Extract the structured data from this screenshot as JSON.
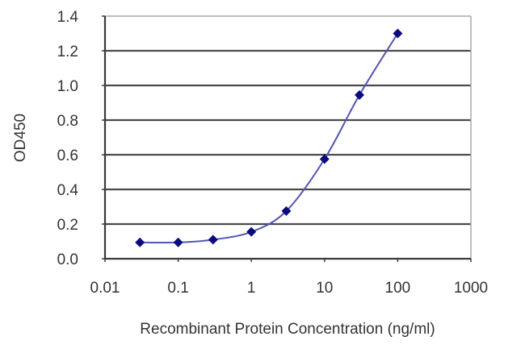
{
  "chart_data": {
    "type": "line",
    "title": "",
    "xlabel": "Recombinant Protein Concentration (ng/ml)",
    "ylabel": "OD450",
    "x_scale": "log",
    "xlim": [
      0.01,
      1000
    ],
    "ylim": [
      0.0,
      1.4
    ],
    "x_ticks": [
      "0.01",
      "0.1",
      "1",
      "10",
      "100",
      "1000"
    ],
    "y_ticks": [
      "0.0",
      "0.2",
      "0.4",
      "0.6",
      "0.8",
      "1.0",
      "1.2",
      "1.4"
    ],
    "grid": "horizontal",
    "legend": null,
    "series": [
      {
        "name": "OD450",
        "marker": "diamond",
        "color": "#0b0b7e",
        "line_color": "#5454b4",
        "x": [
          0.03,
          0.1,
          0.3,
          1,
          3,
          10,
          30,
          100
        ],
        "y": [
          0.094,
          0.094,
          0.11,
          0.155,
          0.275,
          0.575,
          0.945,
          1.3
        ]
      }
    ]
  },
  "colors": {
    "grid": "#4a4a4a",
    "axis": "#3a3a3a",
    "frame": "#a8a8a8",
    "text": "#333333"
  }
}
